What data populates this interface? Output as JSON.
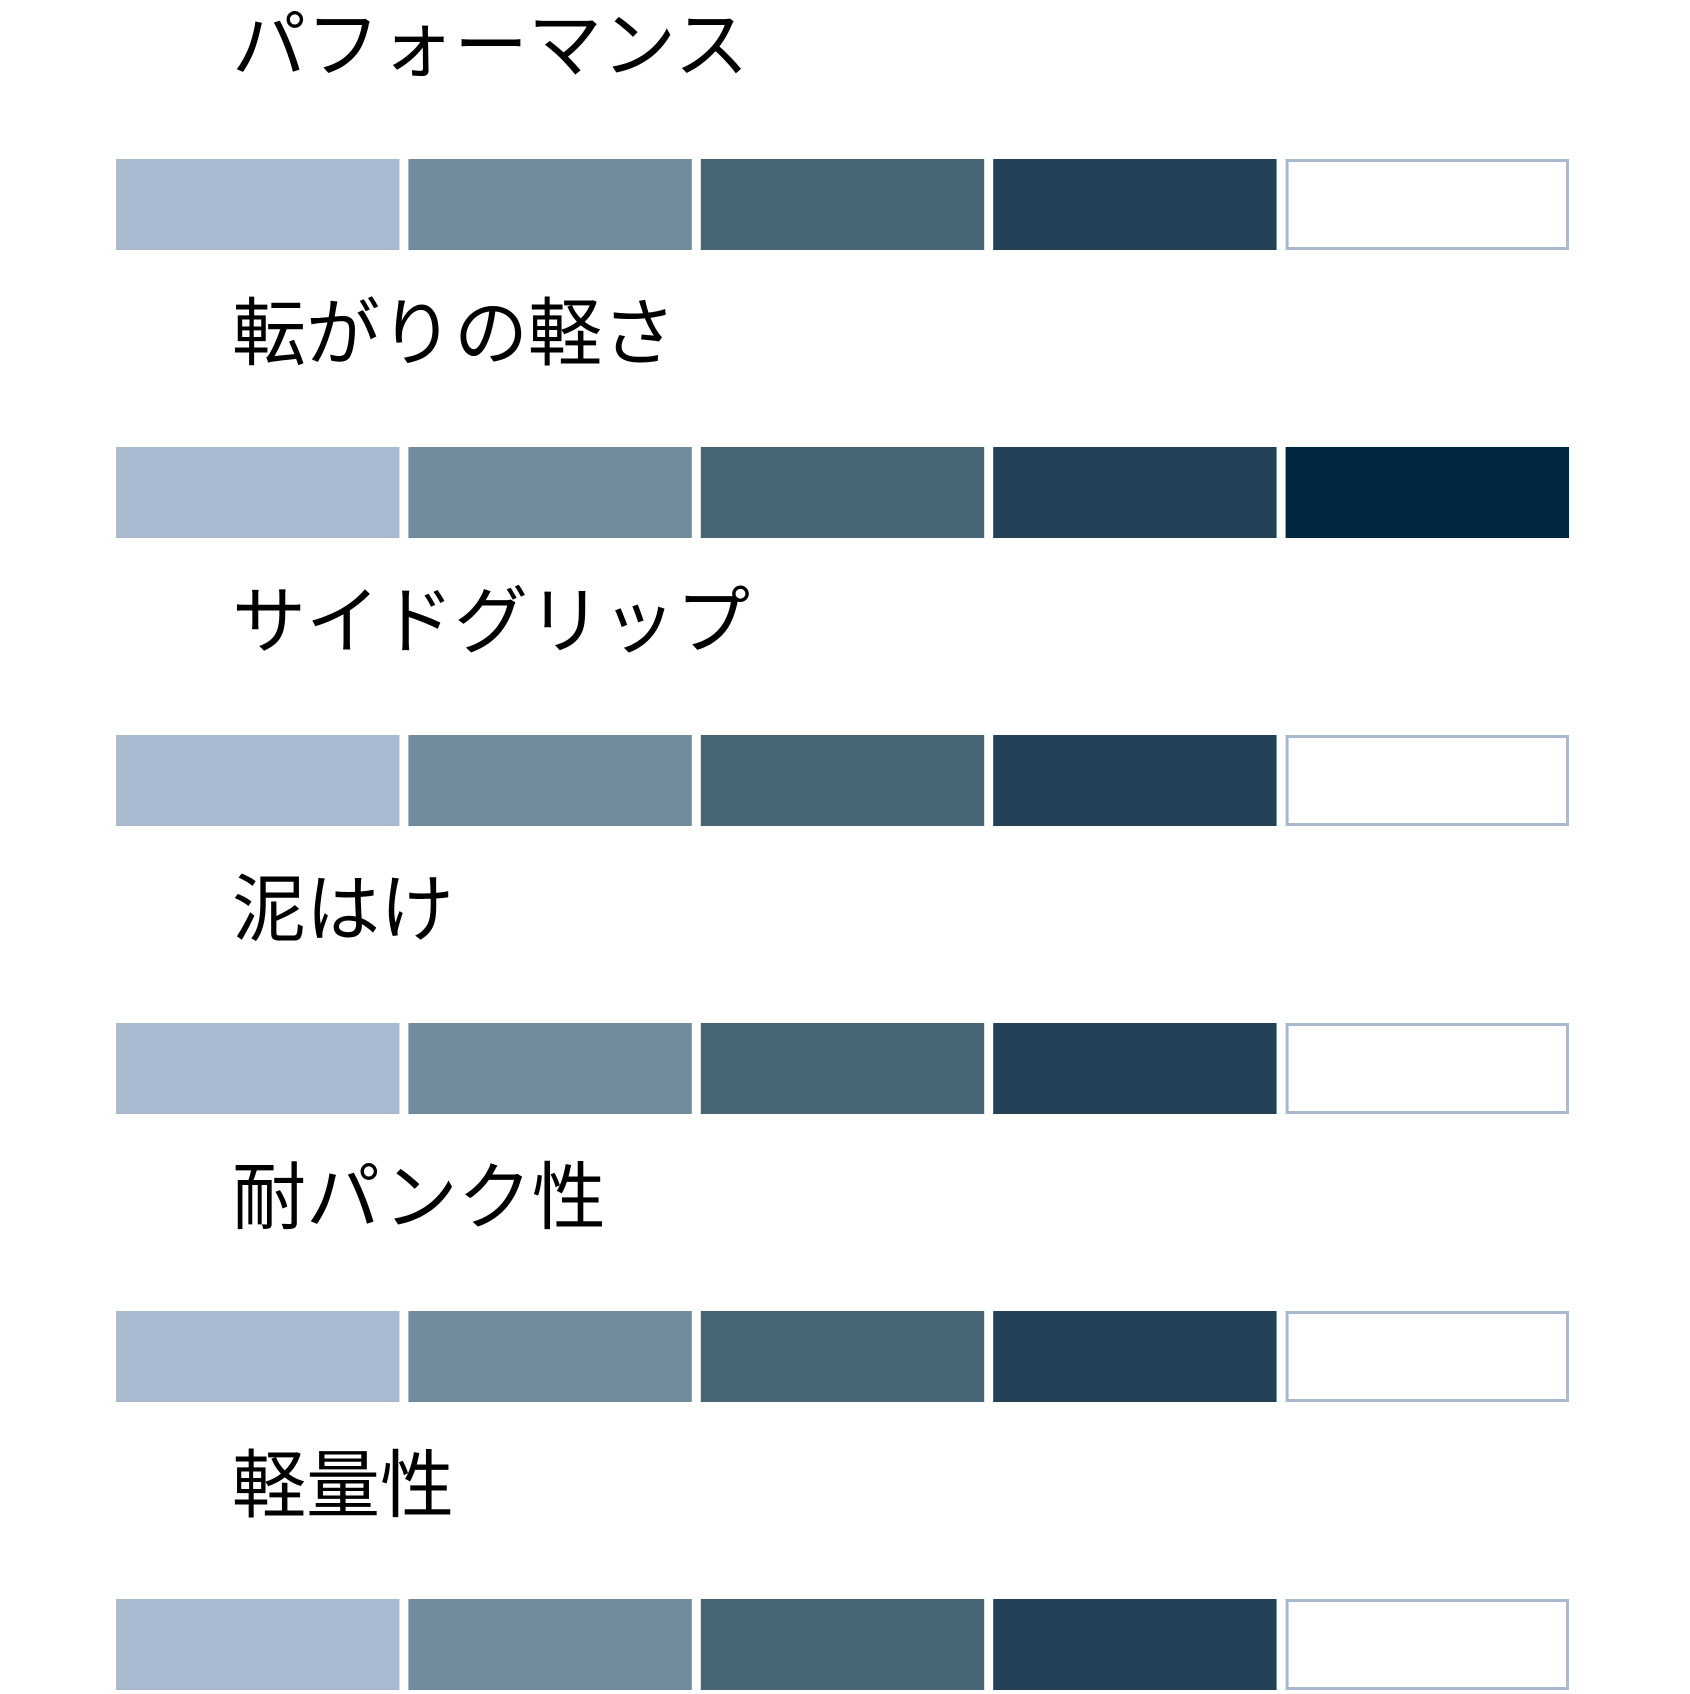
{
  "items": [
    {
      "label": "パフォーマンス",
      "rating": 4
    },
    {
      "label": "転がりの軽さ",
      "rating": 5
    },
    {
      "label": "サイドグリップ",
      "rating": 4
    },
    {
      "label": "泥はけ",
      "rating": 4
    },
    {
      "label": "耐パンク性",
      "rating": 4
    },
    {
      "label": "軽量性",
      "rating": 4
    }
  ],
  "scale_max": 5,
  "segment_colors": [
    "#a9b9cf",
    "#728c9d",
    "#476675",
    "#234257",
    "#012840"
  ],
  "empty_color": "#ffffff",
  "empty_border": "#a9b9cf"
}
